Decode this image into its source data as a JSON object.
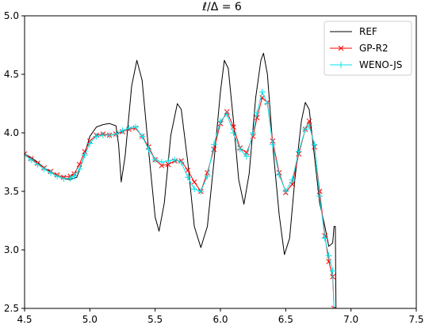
{
  "chart_data": {
    "type": "line",
    "title": "ℓ/Δ = 6",
    "xlabel": "",
    "ylabel": "",
    "xlim": [
      4.5,
      7.5
    ],
    "ylim": [
      2.5,
      5.0
    ],
    "xticks": [
      "4.5",
      "5.0",
      "5.5",
      "6.0",
      "6.5",
      "7.0",
      "7.5"
    ],
    "yticks": [
      "2.5",
      "3.0",
      "3.5",
      "4.0",
      "4.5",
      "5.0"
    ],
    "grid": false,
    "legend_position": "top-right",
    "series": [
      {
        "name": "REF",
        "color": "#000000",
        "marker": "none",
        "points": [
          [
            4.5,
            3.82
          ],
          [
            4.55,
            3.79
          ],
          [
            4.6,
            3.75
          ],
          [
            4.65,
            3.7
          ],
          [
            4.7,
            3.66
          ],
          [
            4.75,
            3.63
          ],
          [
            4.8,
            3.61
          ],
          [
            4.85,
            3.6
          ],
          [
            4.9,
            3.62
          ],
          [
            4.95,
            3.78
          ],
          [
            5.0,
            3.97
          ],
          [
            5.05,
            4.05
          ],
          [
            5.1,
            4.07
          ],
          [
            5.15,
            4.08
          ],
          [
            5.2,
            4.06
          ],
          [
            5.22,
            3.9
          ],
          [
            5.24,
            3.58
          ],
          [
            5.27,
            3.8
          ],
          [
            5.32,
            4.4
          ],
          [
            5.36,
            4.62
          ],
          [
            5.4,
            4.45
          ],
          [
            5.45,
            3.85
          ],
          [
            5.5,
            3.28
          ],
          [
            5.53,
            3.16
          ],
          [
            5.57,
            3.4
          ],
          [
            5.62,
            3.98
          ],
          [
            5.67,
            4.25
          ],
          [
            5.7,
            4.2
          ],
          [
            5.75,
            3.75
          ],
          [
            5.8,
            3.2
          ],
          [
            5.85,
            3.02
          ],
          [
            5.9,
            3.2
          ],
          [
            5.95,
            3.75
          ],
          [
            6.0,
            4.35
          ],
          [
            6.03,
            4.62
          ],
          [
            6.06,
            4.55
          ],
          [
            6.1,
            4.1
          ],
          [
            6.14,
            3.6
          ],
          [
            6.18,
            3.39
          ],
          [
            6.22,
            3.65
          ],
          [
            6.27,
            4.3
          ],
          [
            6.31,
            4.62
          ],
          [
            6.33,
            4.68
          ],
          [
            6.36,
            4.5
          ],
          [
            6.4,
            3.9
          ],
          [
            6.45,
            3.3
          ],
          [
            6.49,
            2.96
          ],
          [
            6.53,
            3.1
          ],
          [
            6.57,
            3.6
          ],
          [
            6.62,
            4.1
          ],
          [
            6.65,
            4.26
          ],
          [
            6.68,
            4.2
          ],
          [
            6.72,
            3.8
          ],
          [
            6.76,
            3.4
          ],
          [
            6.8,
            3.2
          ],
          [
            6.83,
            3.03
          ],
          [
            6.86,
            3.06
          ],
          [
            6.87,
            3.2
          ],
          [
            6.88,
            3.2
          ],
          [
            6.885,
            2.5
          ]
        ]
      },
      {
        "name": "GP-R2",
        "color": "#ff0000",
        "marker": "x",
        "points": [
          [
            4.5,
            3.82
          ],
          [
            4.55,
            3.78
          ],
          [
            4.6,
            3.74
          ],
          [
            4.65,
            3.7
          ],
          [
            4.7,
            3.67
          ],
          [
            4.75,
            3.64
          ],
          [
            4.8,
            3.62
          ],
          [
            4.85,
            3.63
          ],
          [
            4.88,
            3.65
          ],
          [
            4.92,
            3.73
          ],
          [
            4.96,
            3.84
          ],
          [
            5.0,
            3.93
          ],
          [
            5.05,
            3.98
          ],
          [
            5.1,
            3.99
          ],
          [
            5.15,
            3.98
          ],
          [
            5.2,
            3.99
          ],
          [
            5.25,
            4.01
          ],
          [
            5.3,
            4.03
          ],
          [
            5.35,
            4.04
          ],
          [
            5.4,
            3.97
          ],
          [
            5.45,
            3.88
          ],
          [
            5.5,
            3.77
          ],
          [
            5.55,
            3.72
          ],
          [
            5.6,
            3.73
          ],
          [
            5.65,
            3.76
          ],
          [
            5.7,
            3.76
          ],
          [
            5.75,
            3.68
          ],
          [
            5.8,
            3.58
          ],
          [
            5.85,
            3.5
          ],
          [
            5.9,
            3.66
          ],
          [
            5.95,
            3.86
          ],
          [
            6.0,
            4.08
          ],
          [
            6.05,
            4.18
          ],
          [
            6.1,
            4.05
          ],
          [
            6.15,
            3.87
          ],
          [
            6.2,
            3.83
          ],
          [
            6.25,
            3.97
          ],
          [
            6.28,
            4.13
          ],
          [
            6.32,
            4.3
          ],
          [
            6.36,
            4.26
          ],
          [
            6.4,
            3.93
          ],
          [
            6.45,
            3.66
          ],
          [
            6.5,
            3.49
          ],
          [
            6.55,
            3.56
          ],
          [
            6.6,
            3.82
          ],
          [
            6.65,
            4.03
          ],
          [
            6.68,
            4.1
          ],
          [
            6.72,
            3.88
          ],
          [
            6.76,
            3.5
          ],
          [
            6.8,
            3.12
          ],
          [
            6.83,
            2.9
          ],
          [
            6.86,
            2.77
          ],
          [
            6.87,
            2.5
          ]
        ]
      },
      {
        "name": "WENO-JS",
        "color": "#00e5ee",
        "marker": "+",
        "points": [
          [
            4.5,
            3.81
          ],
          [
            4.55,
            3.77
          ],
          [
            4.6,
            3.73
          ],
          [
            4.65,
            3.69
          ],
          [
            4.7,
            3.66
          ],
          [
            4.75,
            3.63
          ],
          [
            4.8,
            3.61
          ],
          [
            4.85,
            3.61
          ],
          [
            4.88,
            3.63
          ],
          [
            4.92,
            3.69
          ],
          [
            4.96,
            3.81
          ],
          [
            5.0,
            3.91
          ],
          [
            5.05,
            3.97
          ],
          [
            5.1,
            3.98
          ],
          [
            5.15,
            3.98
          ],
          [
            5.2,
            3.99
          ],
          [
            5.25,
            4.02
          ],
          [
            5.3,
            4.04
          ],
          [
            5.35,
            4.05
          ],
          [
            5.4,
            3.97
          ],
          [
            5.45,
            3.86
          ],
          [
            5.5,
            3.77
          ],
          [
            5.55,
            3.75
          ],
          [
            5.6,
            3.76
          ],
          [
            5.65,
            3.77
          ],
          [
            5.7,
            3.75
          ],
          [
            5.75,
            3.62
          ],
          [
            5.8,
            3.52
          ],
          [
            5.85,
            3.5
          ],
          [
            5.9,
            3.63
          ],
          [
            5.95,
            3.9
          ],
          [
            6.0,
            4.1
          ],
          [
            6.05,
            4.16
          ],
          [
            6.1,
            4.0
          ],
          [
            6.15,
            3.86
          ],
          [
            6.2,
            3.8
          ],
          [
            6.25,
            4.0
          ],
          [
            6.28,
            4.17
          ],
          [
            6.32,
            4.35
          ],
          [
            6.36,
            4.25
          ],
          [
            6.4,
            3.9
          ],
          [
            6.45,
            3.64
          ],
          [
            6.5,
            3.5
          ],
          [
            6.55,
            3.6
          ],
          [
            6.6,
            3.84
          ],
          [
            6.65,
            4.03
          ],
          [
            6.68,
            4.06
          ],
          [
            6.72,
            3.9
          ],
          [
            6.76,
            3.46
          ],
          [
            6.8,
            3.1
          ],
          [
            6.83,
            2.95
          ],
          [
            6.86,
            2.82
          ],
          [
            6.87,
            2.5
          ]
        ]
      }
    ]
  }
}
